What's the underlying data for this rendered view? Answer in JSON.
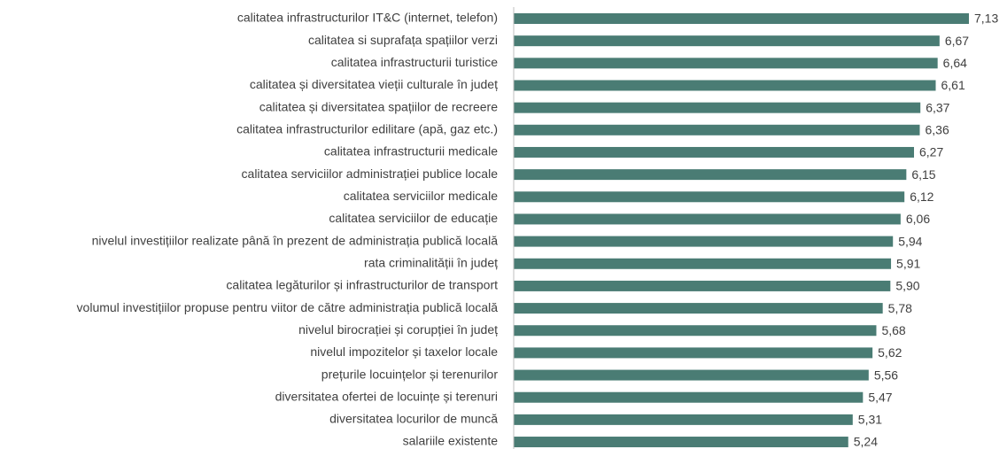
{
  "chart_data": {
    "type": "hbar",
    "categories": [
      "calitatea infrastructurilor IT&C (internet, telefon)",
      "calitatea si suprafața spațiilor verzi",
      "calitatea infrastructurii turistice",
      "calitatea și diversitatea vieții culturale în județ",
      "calitatea și diversitatea spațiilor de recreere",
      "calitatea infrastructurilor edilitare (apă, gaz etc.)",
      "calitatea infrastructurii medicale",
      "calitatea serviciilor administrației publice locale",
      "calitatea serviciilor medicale",
      "calitatea serviciilor de educație",
      "nivelul investițiilor realizate până în prezent de administrația publică locală",
      "rata criminalității în județ",
      "calitatea legăturilor și infrastructurilor de transport",
      "volumul investițiilor propuse pentru viitor de către administrația publică locală",
      "nivelul birocrației și corupției în județ",
      "nivelul impozitelor și taxelor locale",
      "prețurile locuințelor și terenurilor",
      "diversitatea ofertei de locuințe și terenuri",
      "diversitatea locurilor de muncă",
      "salariile existente"
    ],
    "values": [
      7.13,
      6.67,
      6.64,
      6.61,
      6.37,
      6.36,
      6.27,
      6.15,
      6.12,
      6.06,
      5.94,
      5.91,
      5.9,
      5.78,
      5.68,
      5.62,
      5.56,
      5.47,
      5.31,
      5.24
    ],
    "value_labels": [
      "7,13",
      "6,67",
      "6,64",
      "6,61",
      "6,37",
      "6,36",
      "6,27",
      "6,15",
      "6,12",
      "6,06",
      "5,94",
      "5,91",
      "5,90",
      "5,78",
      "5,68",
      "5,62",
      "5,56",
      "5,47",
      "5,31",
      "5,24"
    ],
    "color": "#4a7c74",
    "xlim": [
      0,
      7.13
    ]
  }
}
